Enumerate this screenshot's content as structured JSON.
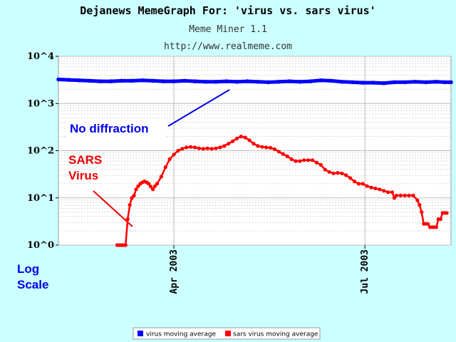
{
  "chart_data": {
    "type": "line",
    "title": "Dejanews MemeGraph For: 'virus vs. sars virus'",
    "subtitle": "Meme Miner 1.1",
    "url": "http://www.realmeme.com",
    "y_scale": "log10",
    "ylim": [
      0,
      4
    ],
    "yticks": [
      {
        "value": 0,
        "label": "10^0"
      },
      {
        "value": 1,
        "label": "10^1"
      },
      {
        "value": 2,
        "label": "10^2"
      },
      {
        "value": 3,
        "label": "10^3"
      },
      {
        "value": 4,
        "label": "10^4"
      }
    ],
    "x_range": [
      "2003-02-05",
      "2003-08-11"
    ],
    "xticks": [
      {
        "value": "2003-04-01",
        "label": "Apr 2003"
      },
      {
        "value": "2003-07-01",
        "label": "Jul 2003"
      }
    ],
    "ylabel": "Log Scale",
    "grid": true,
    "legend_position": "bottom-center",
    "series": [
      {
        "name": "virus moving average",
        "color": "#0000ff",
        "points": [
          [
            "2003-02-05",
            3.51
          ],
          [
            "2003-02-10",
            3.5
          ],
          [
            "2003-02-15",
            3.49
          ],
          [
            "2003-02-20",
            3.48
          ],
          [
            "2003-02-25",
            3.47
          ],
          [
            "2003-03-02",
            3.47
          ],
          [
            "2003-03-07",
            3.48
          ],
          [
            "2003-03-12",
            3.48
          ],
          [
            "2003-03-17",
            3.49
          ],
          [
            "2003-03-22",
            3.48
          ],
          [
            "2003-03-27",
            3.47
          ],
          [
            "2003-04-01",
            3.47
          ],
          [
            "2003-04-06",
            3.48
          ],
          [
            "2003-04-11",
            3.47
          ],
          [
            "2003-04-16",
            3.46
          ],
          [
            "2003-04-21",
            3.46
          ],
          [
            "2003-04-26",
            3.47
          ],
          [
            "2003-05-01",
            3.46
          ],
          [
            "2003-05-06",
            3.47
          ],
          [
            "2003-05-11",
            3.46
          ],
          [
            "2003-05-16",
            3.45
          ],
          [
            "2003-05-21",
            3.46
          ],
          [
            "2003-05-26",
            3.47
          ],
          [
            "2003-05-31",
            3.46
          ],
          [
            "2003-06-05",
            3.47
          ],
          [
            "2003-06-10",
            3.49
          ],
          [
            "2003-06-15",
            3.48
          ],
          [
            "2003-06-20",
            3.46
          ],
          [
            "2003-06-25",
            3.45
          ],
          [
            "2003-06-30",
            3.44
          ],
          [
            "2003-07-05",
            3.44
          ],
          [
            "2003-07-10",
            3.43
          ],
          [
            "2003-07-15",
            3.45
          ],
          [
            "2003-07-20",
            3.45
          ],
          [
            "2003-07-25",
            3.46
          ],
          [
            "2003-07-30",
            3.45
          ],
          [
            "2003-08-04",
            3.46
          ],
          [
            "2003-08-08",
            3.45
          ],
          [
            "2003-08-11",
            3.45
          ]
        ]
      },
      {
        "name": "sars virus moving average",
        "color": "#ff0000",
        "points": [
          [
            "2003-03-05",
            0
          ],
          [
            "2003-03-06",
            0
          ],
          [
            "2003-03-07",
            0
          ],
          [
            "2003-03-08",
            0
          ],
          [
            "2003-03-09",
            0
          ],
          [
            "2003-03-10",
            0.55
          ],
          [
            "2003-03-11",
            0.85
          ],
          [
            "2003-03-12",
            1.0
          ],
          [
            "2003-03-13",
            1.05
          ],
          [
            "2003-03-14",
            1.18
          ],
          [
            "2003-03-15",
            1.25
          ],
          [
            "2003-03-16",
            1.3
          ],
          [
            "2003-03-17",
            1.33
          ],
          [
            "2003-03-18",
            1.35
          ],
          [
            "2003-03-19",
            1.33
          ],
          [
            "2003-03-20",
            1.3
          ],
          [
            "2003-03-21",
            1.24
          ],
          [
            "2003-03-22",
            1.18
          ],
          [
            "2003-03-23",
            1.25
          ],
          [
            "2003-03-24",
            1.3
          ],
          [
            "2003-03-26",
            1.45
          ],
          [
            "2003-03-28",
            1.65
          ],
          [
            "2003-03-30",
            1.82
          ],
          [
            "2003-04-01",
            1.92
          ],
          [
            "2003-04-03",
            2.0
          ],
          [
            "2003-04-05",
            2.04
          ],
          [
            "2003-04-07",
            2.07
          ],
          [
            "2003-04-09",
            2.08
          ],
          [
            "2003-04-11",
            2.07
          ],
          [
            "2003-04-13",
            2.05
          ],
          [
            "2003-04-15",
            2.04
          ],
          [
            "2003-04-17",
            2.05
          ],
          [
            "2003-04-19",
            2.04
          ],
          [
            "2003-04-21",
            2.05
          ],
          [
            "2003-04-23",
            2.07
          ],
          [
            "2003-04-25",
            2.1
          ],
          [
            "2003-04-27",
            2.15
          ],
          [
            "2003-04-29",
            2.2
          ],
          [
            "2003-05-01",
            2.26
          ],
          [
            "2003-05-03",
            2.3
          ],
          [
            "2003-05-05",
            2.28
          ],
          [
            "2003-05-07",
            2.22
          ],
          [
            "2003-05-09",
            2.15
          ],
          [
            "2003-05-11",
            2.1
          ],
          [
            "2003-05-13",
            2.08
          ],
          [
            "2003-05-15",
            2.07
          ],
          [
            "2003-05-17",
            2.06
          ],
          [
            "2003-05-19",
            2.03
          ],
          [
            "2003-05-21",
            1.98
          ],
          [
            "2003-05-23",
            1.93
          ],
          [
            "2003-05-25",
            1.88
          ],
          [
            "2003-05-27",
            1.82
          ],
          [
            "2003-05-29",
            1.78
          ],
          [
            "2003-05-31",
            1.78
          ],
          [
            "2003-06-02",
            1.8
          ],
          [
            "2003-06-04",
            1.8
          ],
          [
            "2003-06-06",
            1.8
          ],
          [
            "2003-06-08",
            1.75
          ],
          [
            "2003-06-10",
            1.7
          ],
          [
            "2003-06-12",
            1.6
          ],
          [
            "2003-06-14",
            1.55
          ],
          [
            "2003-06-16",
            1.52
          ],
          [
            "2003-06-18",
            1.53
          ],
          [
            "2003-06-20",
            1.52
          ],
          [
            "2003-06-22",
            1.48
          ],
          [
            "2003-06-24",
            1.42
          ],
          [
            "2003-06-26",
            1.35
          ],
          [
            "2003-06-28",
            1.3
          ],
          [
            "2003-06-30",
            1.3
          ],
          [
            "2003-07-02",
            1.25
          ],
          [
            "2003-07-04",
            1.22
          ],
          [
            "2003-07-06",
            1.2
          ],
          [
            "2003-07-08",
            1.18
          ],
          [
            "2003-07-10",
            1.15
          ],
          [
            "2003-07-12",
            1.12
          ],
          [
            "2003-07-14",
            1.12
          ],
          [
            "2003-07-15",
            1.0
          ],
          [
            "2003-07-16",
            1.05
          ],
          [
            "2003-07-18",
            1.05
          ],
          [
            "2003-07-20",
            1.05
          ],
          [
            "2003-07-22",
            1.05
          ],
          [
            "2003-07-24",
            1.05
          ],
          [
            "2003-07-26",
            0.95
          ],
          [
            "2003-07-27",
            0.85
          ],
          [
            "2003-07-28",
            0.7
          ],
          [
            "2003-07-29",
            0.45
          ],
          [
            "2003-07-30",
            0.45
          ],
          [
            "2003-07-31",
            0.45
          ],
          [
            "2003-08-01",
            0.38
          ],
          [
            "2003-08-02",
            0.38
          ],
          [
            "2003-08-03",
            0.38
          ],
          [
            "2003-08-04",
            0.38
          ],
          [
            "2003-08-05",
            0.55
          ],
          [
            "2003-08-06",
            0.55
          ],
          [
            "2003-08-07",
            0.68
          ],
          [
            "2003-08-08",
            0.68
          ],
          [
            "2003-08-09",
            0.68
          ]
        ]
      }
    ],
    "annotations": [
      {
        "text": "No diffraction",
        "color": "#0000ee"
      },
      {
        "lines": [
          "SARS",
          "Virus"
        ],
        "color": "#ee0000"
      }
    ]
  }
}
